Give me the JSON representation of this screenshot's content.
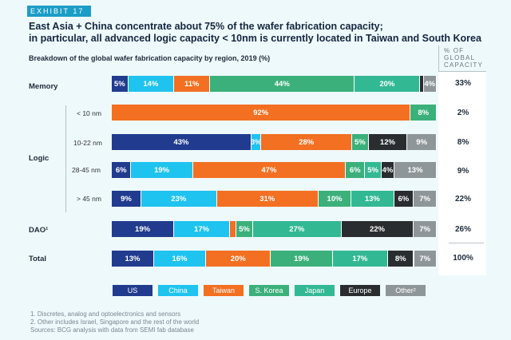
{
  "exhibit": "EXHIBIT 17",
  "title_lines": [
    "East Asia + China concentrate about 75% of the wafer fabrication capacity;",
    "in particular, all advanced logic capacity < 10nm is currently located in Taiwan and South Korea"
  ],
  "subtitle": "Breakdown of the global wafer fabrication capacity by region, 2019 (%)",
  "share_header": "% OF GLOBAL CAPACITY",
  "colors": {
    "US": "#213b8e",
    "China": "#1fc3ef",
    "Taiwan": "#f36f21",
    "S. Korea": "#3bb07b",
    "Japan": "#33b894",
    "Europe": "#2a2d30",
    "Other": "#8f9699"
  },
  "row_labels": {
    "memory": "Memory",
    "logic": "Logic",
    "dao": "DAO¹",
    "total": "Total"
  },
  "chart_data": {
    "type": "bar",
    "orientation": "horizontal",
    "stacked": true,
    "series_names": [
      "US",
      "China",
      "Taiwan",
      "S. Korea",
      "Japan",
      "Europe",
      "Other²"
    ],
    "rows": [
      {
        "label": "Memory",
        "values": [
          5,
          14,
          11,
          44,
          20,
          1,
          4
        ],
        "labels": [
          "5%",
          "14%",
          "11%",
          "44%",
          "20%",
          "",
          "4%"
        ],
        "global_share": "33%"
      },
      {
        "label": "< 10 nm",
        "values": [
          0,
          0,
          92,
          8,
          0,
          0,
          0
        ],
        "labels": [
          "",
          "",
          "92%",
          "8%",
          "",
          "",
          ""
        ],
        "global_share": "2%"
      },
      {
        "label": "10-22 nm",
        "values": [
          43,
          3,
          28,
          5,
          0,
          12,
          9
        ],
        "labels": [
          "43%",
          "3%",
          "28%",
          "5%",
          "",
          "12%",
          "9%"
        ],
        "global_share": "8%"
      },
      {
        "label": "28-45 nm",
        "values": [
          6,
          19,
          47,
          6,
          5,
          4,
          13
        ],
        "labels": [
          "6%",
          "19%",
          "47%",
          "6%",
          "5%",
          "4%",
          "13%"
        ],
        "global_share": "9%"
      },
      {
        "label": "> 45 nm",
        "values": [
          9,
          23,
          31,
          10,
          13,
          6,
          7
        ],
        "labels": [
          "9%",
          "23%",
          "31%",
          "10%",
          "13%",
          "6%",
          "7%"
        ],
        "global_share": "22%"
      },
      {
        "label": "DAO¹",
        "values": [
          19,
          17,
          2,
          5,
          27,
          22,
          7
        ],
        "labels": [
          "19%",
          "17%",
          "",
          "5%",
          "27%",
          "22%",
          "7%"
        ],
        "global_share": "26%"
      },
      {
        "label": "Total",
        "values": [
          13,
          16,
          20,
          19,
          17,
          8,
          7
        ],
        "labels": [
          "13%",
          "16%",
          "20%",
          "19%",
          "17%",
          "8%",
          "7%"
        ],
        "global_share": "100%"
      }
    ]
  },
  "legend": [
    "US",
    "China",
    "Taiwan",
    "S. Korea",
    "Japan",
    "Europe",
    "Other²"
  ],
  "notes": [
    "1.  Discretes, analog and optoelectronics and sensors",
    "2. Other includes Israel, Singapore and the rest of the world",
    "Sources: BCG analysis with data from SEMI fab database"
  ]
}
